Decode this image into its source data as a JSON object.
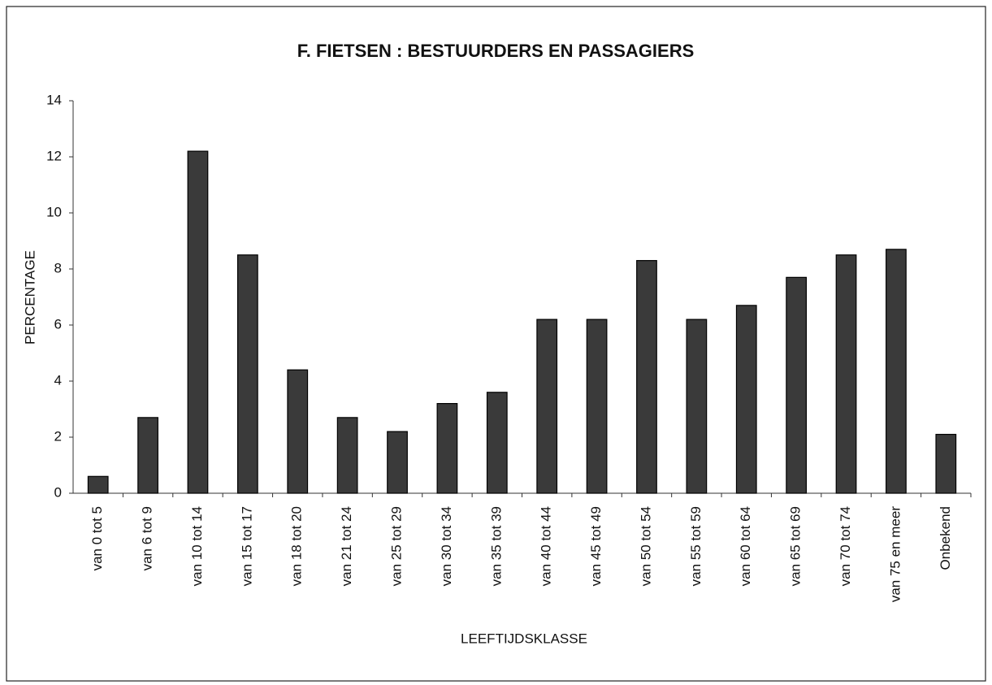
{
  "chart_data": {
    "type": "bar",
    "title": "F. FIETSEN : BESTUURDERS EN PASSAGIERS",
    "x_label": "LEEFTIJDSKLASSE",
    "y_label": "PERCENTAGE",
    "categories": [
      "van 0 tot 5",
      "van 6 tot 9",
      "van 10 tot 14",
      "van 15 tot 17",
      "van 18 tot 20",
      "van 21 tot 24",
      "van 25 tot 29",
      "van 30 tot 34",
      "van 35 tot 39",
      "van 40 tot 44",
      "van 45 tot 49",
      "van 50 tot 54",
      "van 55 tot 59",
      "van 60 tot 64",
      "van 65 tot 69",
      "van 70 tot 74",
      "van 75 en meer",
      "Onbekend"
    ],
    "values": [
      0.6,
      2.7,
      12.2,
      8.5,
      4.4,
      2.7,
      2.2,
      3.2,
      3.6,
      6.2,
      6.2,
      8.3,
      6.2,
      6.7,
      7.7,
      8.5,
      8.7,
      2.1
    ],
    "color": "#3a3a3a",
    "ylim": [
      0,
      14
    ],
    "yticks": [
      0,
      2,
      4,
      6,
      8,
      10,
      12,
      14
    ],
    "grid": false
  }
}
